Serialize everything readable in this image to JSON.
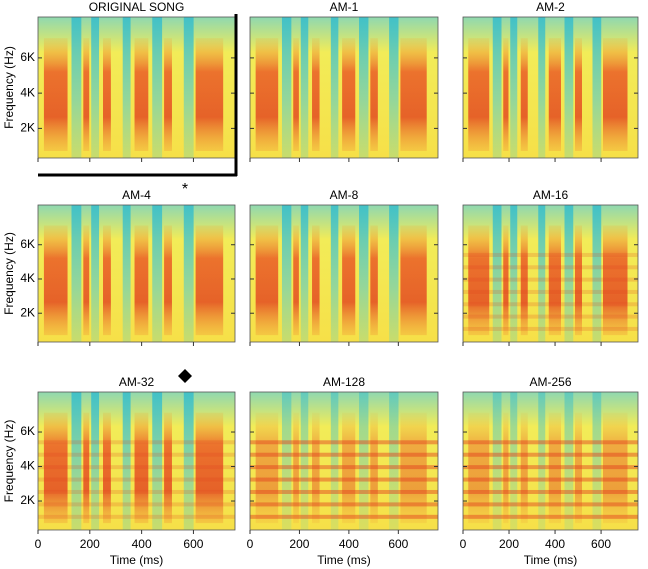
{
  "panels": [
    {
      "title": "ORIGINAL SONG"
    },
    {
      "title": "AM-1"
    },
    {
      "title": "AM-2"
    },
    {
      "title": "AM-4"
    },
    {
      "title": "AM-8"
    },
    {
      "title": "AM-16"
    },
    {
      "title": "AM-32"
    },
    {
      "title": "AM-128"
    },
    {
      "title": "AM-256"
    }
  ],
  "y_axis": {
    "label": "Frequency (Hz)",
    "ticks": [
      "6K",
      "4K",
      "2K"
    ]
  },
  "x_axis": {
    "label": "Time (ms)",
    "ticks": [
      "0",
      "200",
      "400",
      "600"
    ]
  },
  "asterisk": "*"
}
